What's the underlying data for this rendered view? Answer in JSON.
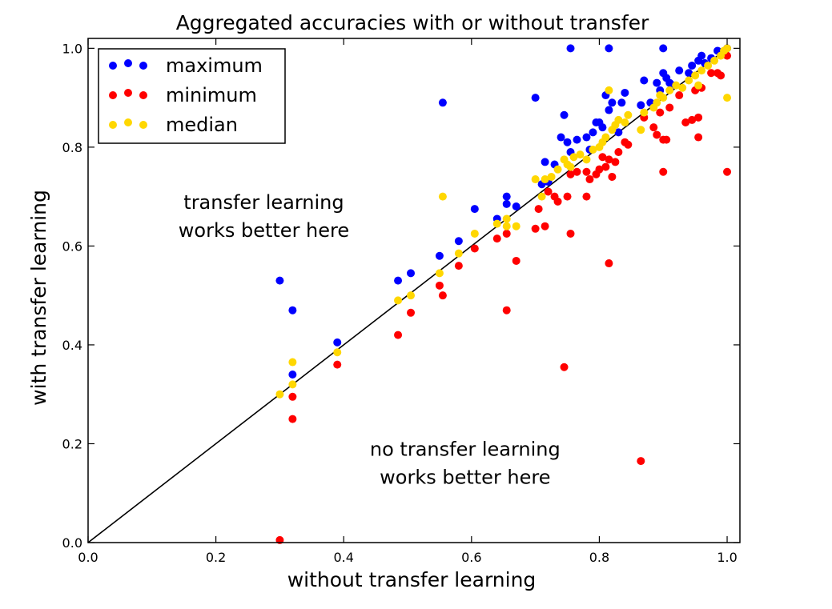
{
  "chart_data": {
    "type": "scatter",
    "title": "Aggregated accuracies with or without transfer",
    "xlabel": "without transfer learning",
    "ylabel": "with transfer learning",
    "xlim": [
      0.0,
      1.02
    ],
    "ylim": [
      0.0,
      1.02
    ],
    "xticks": [
      "0.0",
      "0.2",
      "0.4",
      "0.6",
      "0.8",
      "1.0"
    ],
    "yticks": [
      "0.0",
      "0.2",
      "0.4",
      "0.6",
      "0.8",
      "1.0"
    ],
    "grid": false,
    "legend_position": "top-left",
    "reference_line": {
      "from": [
        0,
        0
      ],
      "to": [
        0.99,
        0.99
      ],
      "color": "#000000"
    },
    "annotations": [
      {
        "lines": [
          "transfer learning",
          "works better here"
        ],
        "x": 0.275,
        "y": 0.66
      },
      {
        "lines": [
          "no transfer learning",
          "works better here"
        ],
        "x": 0.59,
        "y": 0.16
      }
    ],
    "series": [
      {
        "name": "maximum",
        "color": "#0000ff",
        "points": [
          [
            0.3,
            0.53
          ],
          [
            0.32,
            0.34
          ],
          [
            0.32,
            0.47
          ],
          [
            0.39,
            0.405
          ],
          [
            0.485,
            0.53
          ],
          [
            0.505,
            0.545
          ],
          [
            0.55,
            0.58
          ],
          [
            0.555,
            0.89
          ],
          [
            0.58,
            0.61
          ],
          [
            0.605,
            0.675
          ],
          [
            0.64,
            0.655
          ],
          [
            0.655,
            0.7
          ],
          [
            0.655,
            0.685
          ],
          [
            0.67,
            0.68
          ],
          [
            0.7,
            0.9
          ],
          [
            0.71,
            0.725
          ],
          [
            0.715,
            0.77
          ],
          [
            0.72,
            0.73
          ],
          [
            0.73,
            0.765
          ],
          [
            0.74,
            0.82
          ],
          [
            0.745,
            0.865
          ],
          [
            0.75,
            0.81
          ],
          [
            0.755,
            1.0
          ],
          [
            0.755,
            0.79
          ],
          [
            0.765,
            0.815
          ],
          [
            0.78,
            0.82
          ],
          [
            0.785,
            0.795
          ],
          [
            0.79,
            0.83
          ],
          [
            0.795,
            0.85
          ],
          [
            0.8,
            0.85
          ],
          [
            0.805,
            0.84
          ],
          [
            0.81,
            0.905
          ],
          [
            0.815,
            1.0
          ],
          [
            0.815,
            0.875
          ],
          [
            0.82,
            0.89
          ],
          [
            0.83,
            0.83
          ],
          [
            0.835,
            0.89
          ],
          [
            0.84,
            0.91
          ],
          [
            0.865,
            0.885
          ],
          [
            0.87,
            0.935
          ],
          [
            0.88,
            0.89
          ],
          [
            0.89,
            0.93
          ],
          [
            0.895,
            0.915
          ],
          [
            0.9,
            1.0
          ],
          [
            0.9,
            0.95
          ],
          [
            0.905,
            0.94
          ],
          [
            0.91,
            0.93
          ],
          [
            0.915,
            0.925
          ],
          [
            0.925,
            0.955
          ],
          [
            0.94,
            0.95
          ],
          [
            0.945,
            0.965
          ],
          [
            0.955,
            0.975
          ],
          [
            0.96,
            0.985
          ],
          [
            0.965,
            0.97
          ],
          [
            0.975,
            0.98
          ],
          [
            0.985,
            0.995
          ],
          [
            0.99,
            0.99
          ],
          [
            1.0,
            1.0
          ]
        ]
      },
      {
        "name": "minimum",
        "color": "#ff0000",
        "points": [
          [
            0.3,
            0.005
          ],
          [
            0.32,
            0.295
          ],
          [
            0.32,
            0.25
          ],
          [
            0.39,
            0.36
          ],
          [
            0.485,
            0.42
          ],
          [
            0.505,
            0.465
          ],
          [
            0.55,
            0.52
          ],
          [
            0.555,
            0.5
          ],
          [
            0.58,
            0.56
          ],
          [
            0.605,
            0.595
          ],
          [
            0.64,
            0.615
          ],
          [
            0.655,
            0.47
          ],
          [
            0.655,
            0.625
          ],
          [
            0.67,
            0.57
          ],
          [
            0.7,
            0.635
          ],
          [
            0.705,
            0.675
          ],
          [
            0.715,
            0.64
          ],
          [
            0.72,
            0.71
          ],
          [
            0.73,
            0.7
          ],
          [
            0.735,
            0.69
          ],
          [
            0.745,
            0.355
          ],
          [
            0.75,
            0.7
          ],
          [
            0.755,
            0.625
          ],
          [
            0.755,
            0.745
          ],
          [
            0.765,
            0.75
          ],
          [
            0.78,
            0.75
          ],
          [
            0.78,
            0.7
          ],
          [
            0.785,
            0.735
          ],
          [
            0.795,
            0.745
          ],
          [
            0.8,
            0.755
          ],
          [
            0.805,
            0.78
          ],
          [
            0.81,
            0.76
          ],
          [
            0.815,
            0.565
          ],
          [
            0.815,
            0.775
          ],
          [
            0.82,
            0.74
          ],
          [
            0.825,
            0.77
          ],
          [
            0.83,
            0.79
          ],
          [
            0.84,
            0.81
          ],
          [
            0.845,
            0.805
          ],
          [
            0.865,
            0.165
          ],
          [
            0.87,
            0.86
          ],
          [
            0.885,
            0.84
          ],
          [
            0.89,
            0.825
          ],
          [
            0.895,
            0.87
          ],
          [
            0.9,
            0.815
          ],
          [
            0.9,
            0.75
          ],
          [
            0.905,
            0.815
          ],
          [
            0.91,
            0.88
          ],
          [
            0.925,
            0.905
          ],
          [
            0.935,
            0.85
          ],
          [
            0.945,
            0.855
          ],
          [
            0.95,
            0.915
          ],
          [
            0.955,
            0.82
          ],
          [
            0.955,
            0.86
          ],
          [
            0.96,
            0.92
          ],
          [
            0.975,
            0.95
          ],
          [
            0.985,
            0.95
          ],
          [
            0.99,
            0.945
          ],
          [
            1.0,
            0.75
          ],
          [
            1.0,
            0.985
          ]
        ]
      },
      {
        "name": "median",
        "color": "#ffd700",
        "points": [
          [
            0.3,
            0.3
          ],
          [
            0.32,
            0.32
          ],
          [
            0.32,
            0.365
          ],
          [
            0.39,
            0.385
          ],
          [
            0.485,
            0.49
          ],
          [
            0.505,
            0.5
          ],
          [
            0.55,
            0.545
          ],
          [
            0.555,
            0.7
          ],
          [
            0.58,
            0.585
          ],
          [
            0.605,
            0.625
          ],
          [
            0.64,
            0.645
          ],
          [
            0.655,
            0.655
          ],
          [
            0.655,
            0.64
          ],
          [
            0.67,
            0.64
          ],
          [
            0.7,
            0.735
          ],
          [
            0.71,
            0.7
          ],
          [
            0.715,
            0.735
          ],
          [
            0.725,
            0.74
          ],
          [
            0.735,
            0.755
          ],
          [
            0.745,
            0.775
          ],
          [
            0.75,
            0.765
          ],
          [
            0.755,
            0.76
          ],
          [
            0.76,
            0.78
          ],
          [
            0.77,
            0.785
          ],
          [
            0.78,
            0.775
          ],
          [
            0.79,
            0.795
          ],
          [
            0.8,
            0.8
          ],
          [
            0.805,
            0.81
          ],
          [
            0.81,
            0.82
          ],
          [
            0.815,
            0.915
          ],
          [
            0.82,
            0.835
          ],
          [
            0.825,
            0.845
          ],
          [
            0.83,
            0.855
          ],
          [
            0.84,
            0.85
          ],
          [
            0.845,
            0.865
          ],
          [
            0.865,
            0.835
          ],
          [
            0.87,
            0.87
          ],
          [
            0.885,
            0.88
          ],
          [
            0.89,
            0.89
          ],
          [
            0.895,
            0.905
          ],
          [
            0.9,
            0.9
          ],
          [
            0.91,
            0.915
          ],
          [
            0.92,
            0.925
          ],
          [
            0.93,
            0.92
          ],
          [
            0.94,
            0.935
          ],
          [
            0.95,
            0.945
          ],
          [
            0.955,
            0.925
          ],
          [
            0.96,
            0.955
          ],
          [
            0.97,
            0.965
          ],
          [
            0.98,
            0.975
          ],
          [
            0.99,
            0.985
          ],
          [
            0.995,
            0.995
          ],
          [
            1.0,
            0.9
          ],
          [
            1.0,
            1.0
          ]
        ]
      }
    ]
  }
}
